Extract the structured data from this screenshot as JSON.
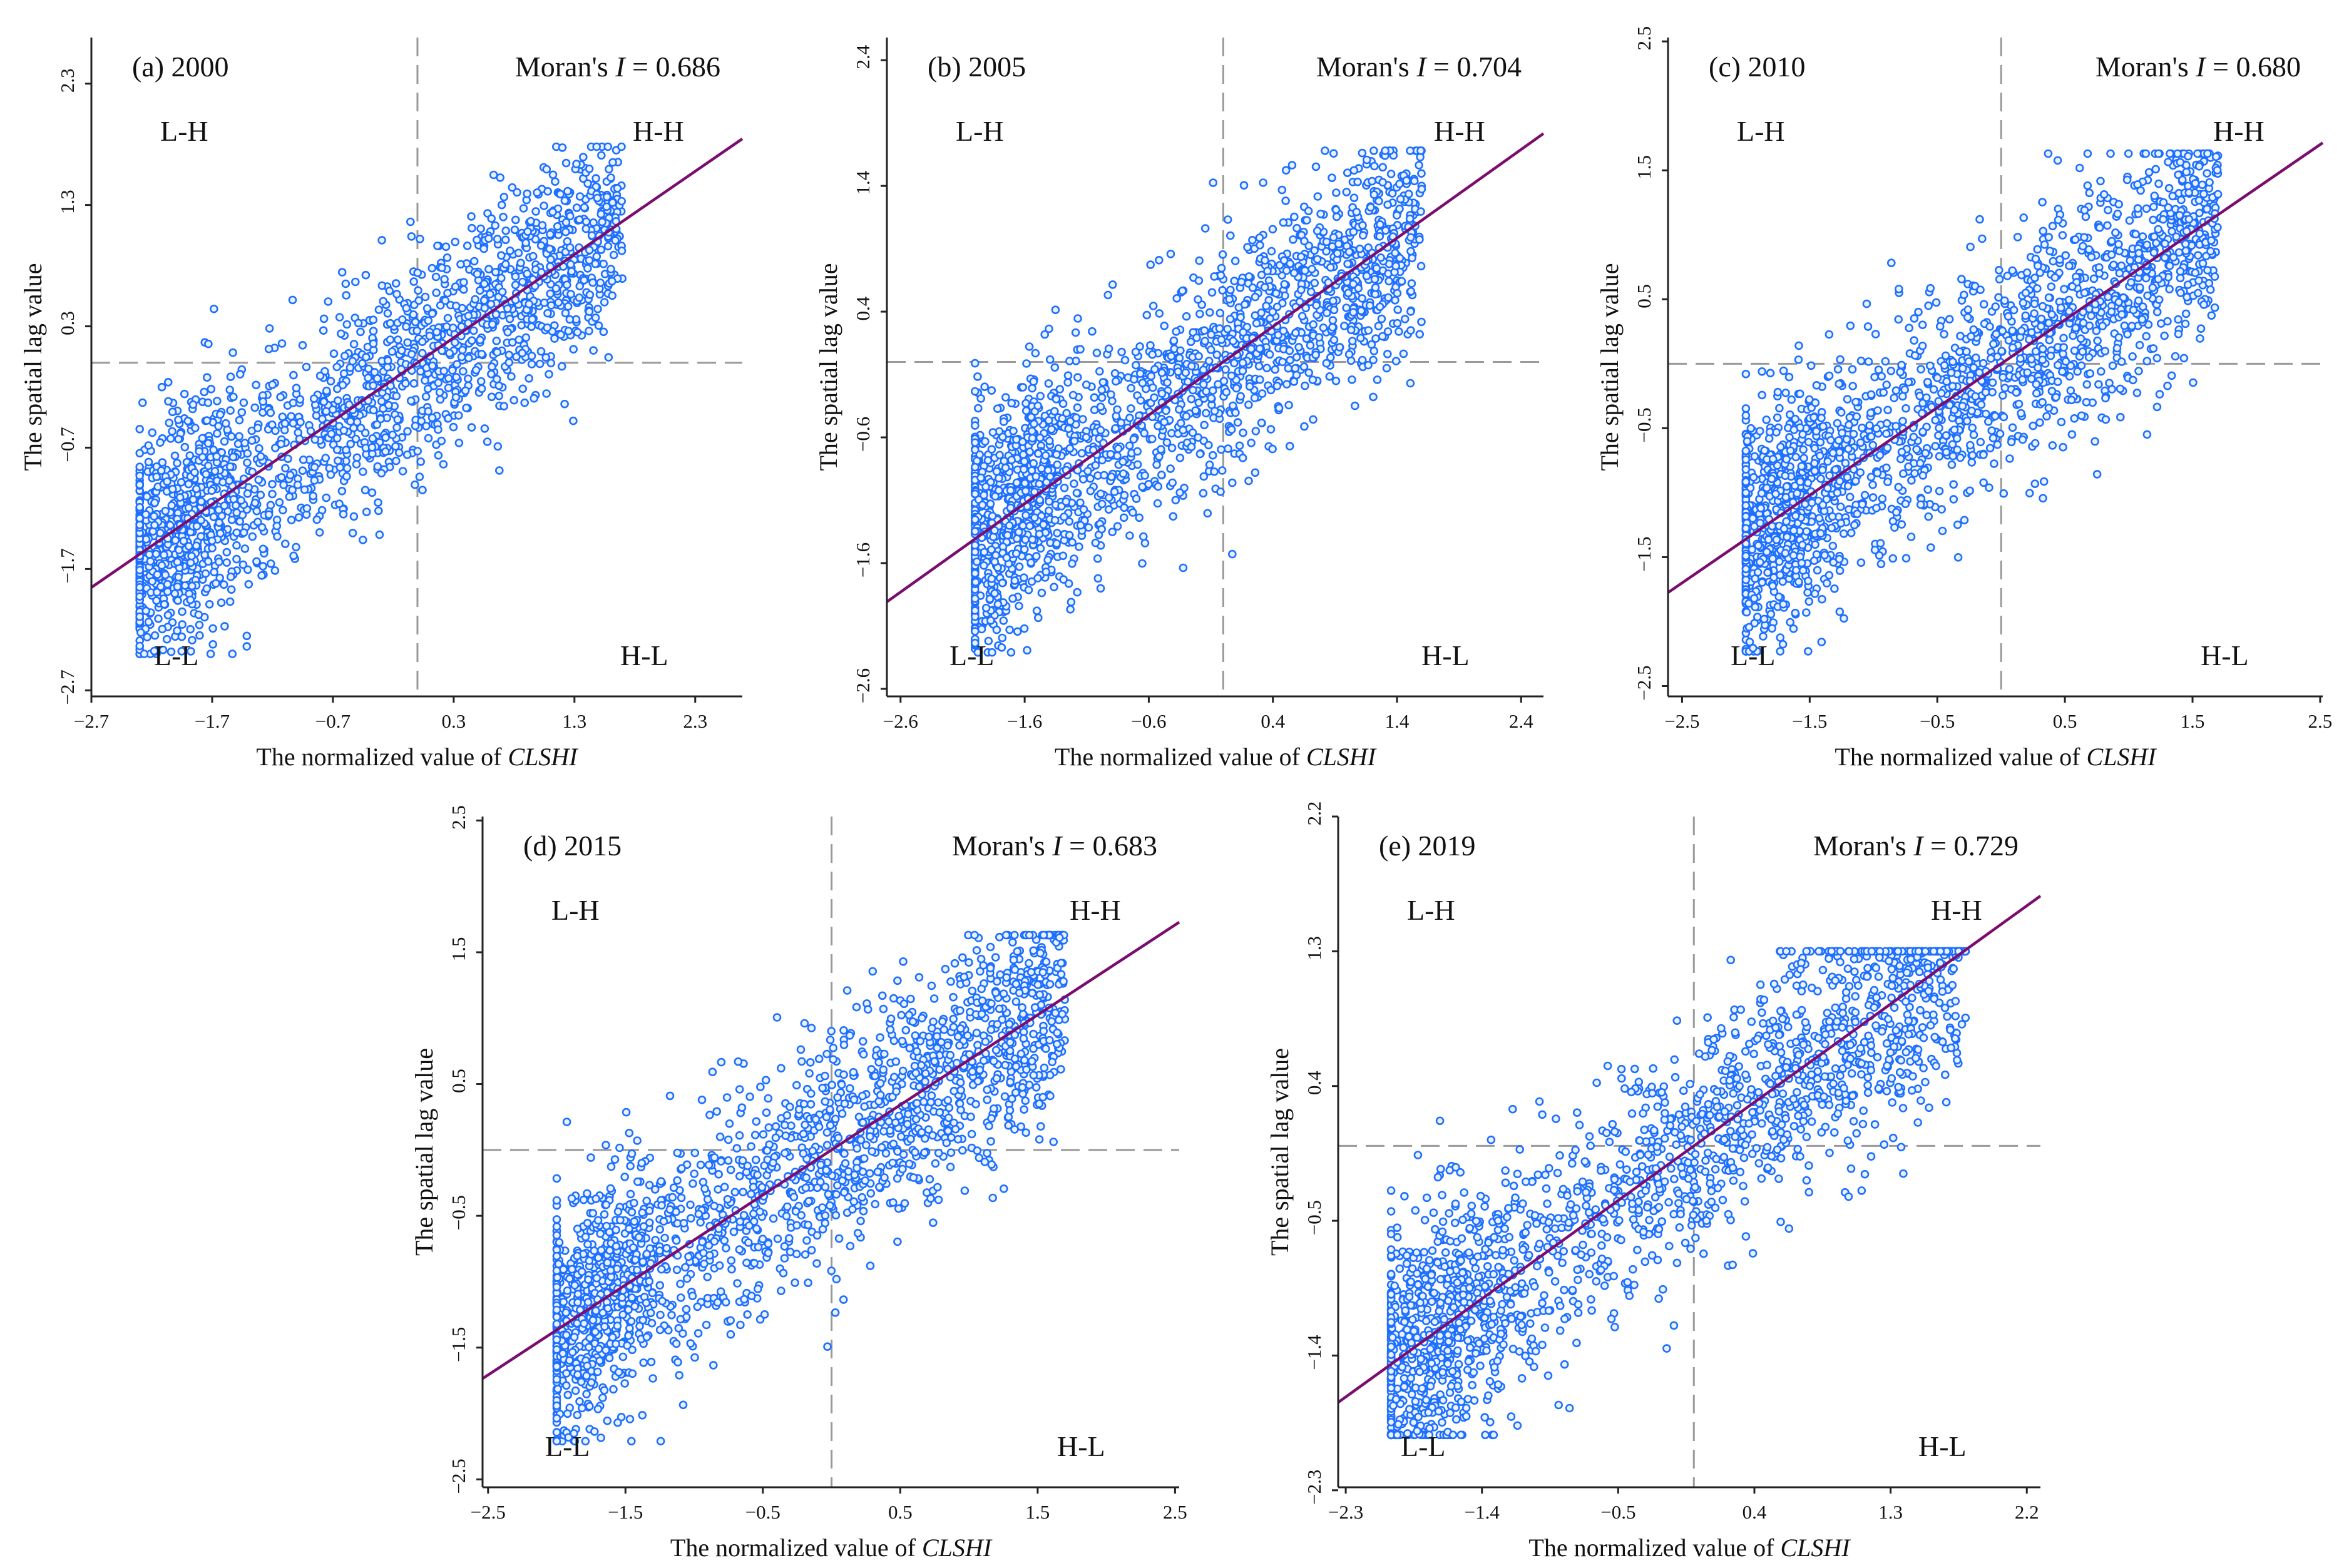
{
  "chart_data": [
    {
      "type": "scatter",
      "title": "(a) 2000",
      "moran_label": "Moran's",
      "moran_symbol": "I",
      "moran_value": "= 0.686",
      "moran_i": 0.686,
      "xlabel_text": "The normalized value of",
      "xlabel_var": "CLSHI",
      "ylabel": "The spatial lag value",
      "xlim": [
        -2.7,
        2.69
      ],
      "ylim": [
        -2.75,
        2.68
      ],
      "xticks": [
        -2.7,
        -1.7,
        -0.7,
        0.3,
        1.3,
        2.3
      ],
      "xtick_labels": [
        "−2.7",
        "−1.7",
        "−0.7",
        "0.3",
        "1.3",
        "2.3"
      ],
      "yticks": [
        -2.7,
        -1.7,
        -0.7,
        0.3,
        1.3,
        2.3
      ],
      "ytick_labels": [
        "−2.7",
        "−1.7",
        "−0.7",
        "0.3",
        "1.3",
        "2.3"
      ],
      "quadrants": [
        "L-H",
        "H-H",
        "L-L",
        "H-L"
      ],
      "reference_lines": {
        "x": 0,
        "y": 0
      },
      "points": {
        "n": 2000,
        "seed": 11,
        "x_range": [
          -2.3,
          1.7
        ],
        "residual_sd": 0.45
      }
    },
    {
      "type": "scatter",
      "title": "(b) 2005",
      "moran_label": "Moran's",
      "moran_symbol": "I",
      "moran_value": "= 0.704",
      "moran_i": 0.704,
      "xlabel_text": "The normalized value of",
      "xlabel_var": "CLSHI",
      "ylabel": "The spatial lag value",
      "xlim": [
        -2.71,
        2.58
      ],
      "ylim": [
        -2.66,
        2.58
      ],
      "xticks": [
        -2.6,
        -1.6,
        -0.6,
        0.4,
        1.4,
        2.4
      ],
      "xtick_labels": [
        "−2.6",
        "−1.6",
        "−0.6",
        "0.4",
        "1.4",
        "2.4"
      ],
      "yticks": [
        -2.6,
        -1.6,
        -0.6,
        0.4,
        1.4,
        2.4
      ],
      "ytick_labels": [
        "−2.6",
        "−1.6",
        "−0.6",
        "0.4",
        "1.4",
        "2.4"
      ],
      "quadrants": [
        "L-H",
        "H-H",
        "L-L",
        "H-L"
      ],
      "reference_lines": {
        "x": 0,
        "y": 0
      },
      "points": {
        "n": 2000,
        "seed": 23,
        "x_range": [
          -2.0,
          1.6
        ],
        "residual_sd": 0.45
      }
    },
    {
      "type": "scatter",
      "title": "(c) 2010",
      "moran_label": "Moran's",
      "moran_symbol": "I",
      "moran_value": "= 0.680",
      "moran_i": 0.68,
      "xlabel_text": "The normalized value of",
      "xlabel_var": "CLSHI",
      "ylabel": "The spatial lag value",
      "xlim": [
        -2.61,
        2.52
      ],
      "ylim": [
        -2.58,
        2.53
      ],
      "xticks": [
        -2.5,
        -1.5,
        -0.5,
        0.5,
        1.5,
        2.5
      ],
      "xtick_labels": [
        "−2.5",
        "−1.5",
        "−0.5",
        "0.5",
        "1.5",
        "2.5"
      ],
      "yticks": [
        -2.5,
        -1.5,
        -0.5,
        0.5,
        1.5,
        2.5
      ],
      "ytick_labels": [
        "−2.5",
        "−1.5",
        "−0.5",
        "0.5",
        "1.5",
        "2.5"
      ],
      "quadrants": [
        "L-H",
        "H-H",
        "L-L",
        "H-L"
      ],
      "reference_lines": {
        "x": 0,
        "y": 0
      },
      "points": {
        "n": 2000,
        "seed": 37,
        "x_range": [
          -2.0,
          1.7
        ],
        "residual_sd": 0.45
      }
    },
    {
      "type": "scatter",
      "title": "(d) 2015",
      "moran_label": "Moran's",
      "moran_symbol": "I",
      "moran_value": "= 0.683",
      "moran_i": 0.683,
      "xlabel_text": "The normalized value of",
      "xlabel_var": "CLSHI",
      "ylabel": "The spatial lag value",
      "xlim": [
        -2.54,
        2.53
      ],
      "ylim": [
        -2.56,
        2.53
      ],
      "xticks": [
        -2.5,
        -1.5,
        -0.5,
        0.5,
        1.5,
        2.5
      ],
      "xtick_labels": [
        "−2.5",
        "−1.5",
        "−0.5",
        "0.5",
        "1.5",
        "2.5"
      ],
      "yticks": [
        -2.5,
        -1.5,
        -0.5,
        0.5,
        1.5,
        2.5
      ],
      "ytick_labels": [
        "−2.5",
        "−1.5",
        "−0.5",
        "0.5",
        "1.5",
        "2.5"
      ],
      "quadrants": [
        "L-H",
        "H-H",
        "L-L",
        "H-L"
      ],
      "reference_lines": {
        "x": 0,
        "y": 0
      },
      "points": {
        "n": 2000,
        "seed": 41,
        "x_range": [
          -2.0,
          1.7
        ],
        "residual_sd": 0.45
      }
    },
    {
      "type": "scatter",
      "title": "(e) 2019",
      "moran_label": "Moran's",
      "moran_symbol": "I",
      "moran_value": "= 0.729",
      "moran_i": 0.729,
      "xlabel_text": "The normalized value of",
      "xlabel_var": "CLSHI",
      "ylabel": "The spatial lag value",
      "xlim": [
        -2.35,
        2.29
      ],
      "ylim": [
        -2.28,
        2.2
      ],
      "xticks": [
        -2.3,
        -1.4,
        -0.5,
        0.4,
        1.3,
        2.2
      ],
      "xtick_labels": [
        "−2.3",
        "−1.4",
        "−0.5",
        "0.4",
        "1.3",
        "2.2"
      ],
      "yticks": [
        -2.3,
        -1.4,
        -0.5,
        0.4,
        1.3,
        2.2
      ],
      "ytick_labels": [
        "−2.3",
        "−1.4",
        "−0.5",
        "0.4",
        "1.3",
        "2.2"
      ],
      "quadrants": [
        "L-H",
        "H-H",
        "L-L",
        "H-L"
      ],
      "reference_lines": {
        "x": 0,
        "y": 0
      },
      "points": {
        "n": 2000,
        "seed": 53,
        "x_range": [
          -2.0,
          1.8
        ],
        "residual_sd": 0.42
      }
    }
  ],
  "colors": {
    "points": "#1f6fff",
    "fit_line": "#7b0d6e",
    "reference": "#999999",
    "axis": "#222222"
  }
}
